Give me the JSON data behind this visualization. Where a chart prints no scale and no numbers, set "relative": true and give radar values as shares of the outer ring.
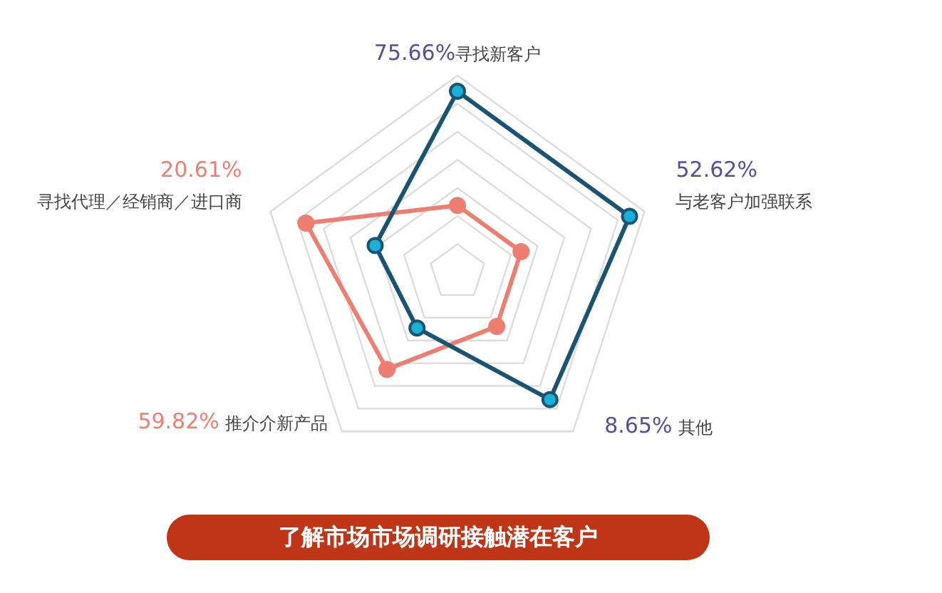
{
  "chart_data": {
    "type": "radar",
    "title": "了解市场市场调研接触潜在客户",
    "relative": true,
    "grid": true,
    "legend": false,
    "marker": "circle",
    "categories": [
      "寻找新客户",
      "与老客户加强联系",
      "其他",
      "推介介新产品",
      "寻找代理／经销商／进口商"
    ],
    "annotations": [
      "75.66%",
      "52.62%",
      "8.65%",
      "59.82%",
      "20.61%"
    ],
    "series": [
      {
        "color": "#1b5470",
        "values": [
          0.92,
          0.92,
          0.8,
          0.35,
          0.44
        ]
      },
      {
        "color": "#ec7f72",
        "values": [
          0.34,
          0.34,
          0.34,
          0.61,
          0.81
        ]
      }
    ]
  }
}
